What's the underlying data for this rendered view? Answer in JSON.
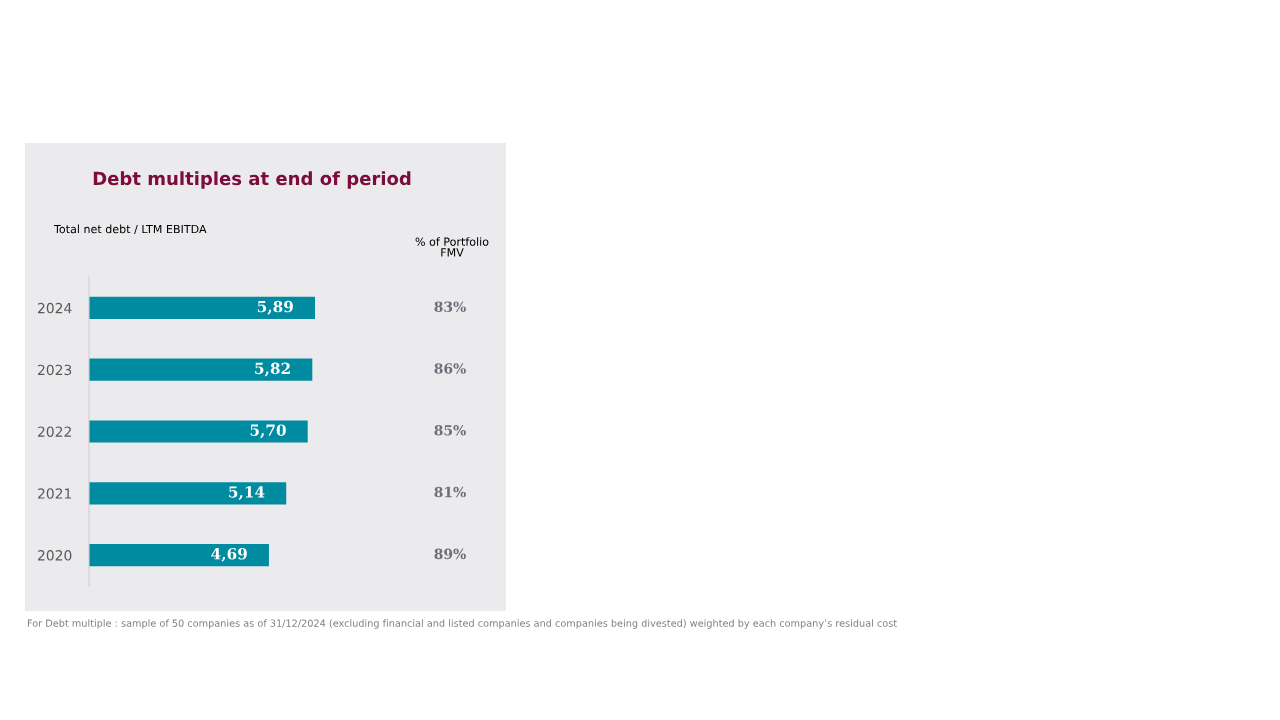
{
  "chart_data": {
    "type": "bar",
    "orientation": "horizontal",
    "title": "Debt multiples at end of period",
    "subtitle": "Total net debt / LTM EBITDA",
    "categories": [
      "2024",
      "2023",
      "2022",
      "2021",
      "2020"
    ],
    "values": [
      5.89,
      5.82,
      5.7,
      5.14,
      4.69
    ],
    "value_labels": [
      "5,89",
      "5,82",
      "5,70",
      "5,14",
      "4,69"
    ],
    "color": "#008ba0",
    "tick_labels": "y",
    "annotations": [
      "% of Portfolio\nFMV",
      "83%",
      "86%",
      "85%",
      "81%",
      "89%",
      "For Debt multiple : sample of 50 companies as of 31/12/2024 (excluding financial and listed companies and companies being divested) weighted by each company’s residual cost"
    ]
  }
}
